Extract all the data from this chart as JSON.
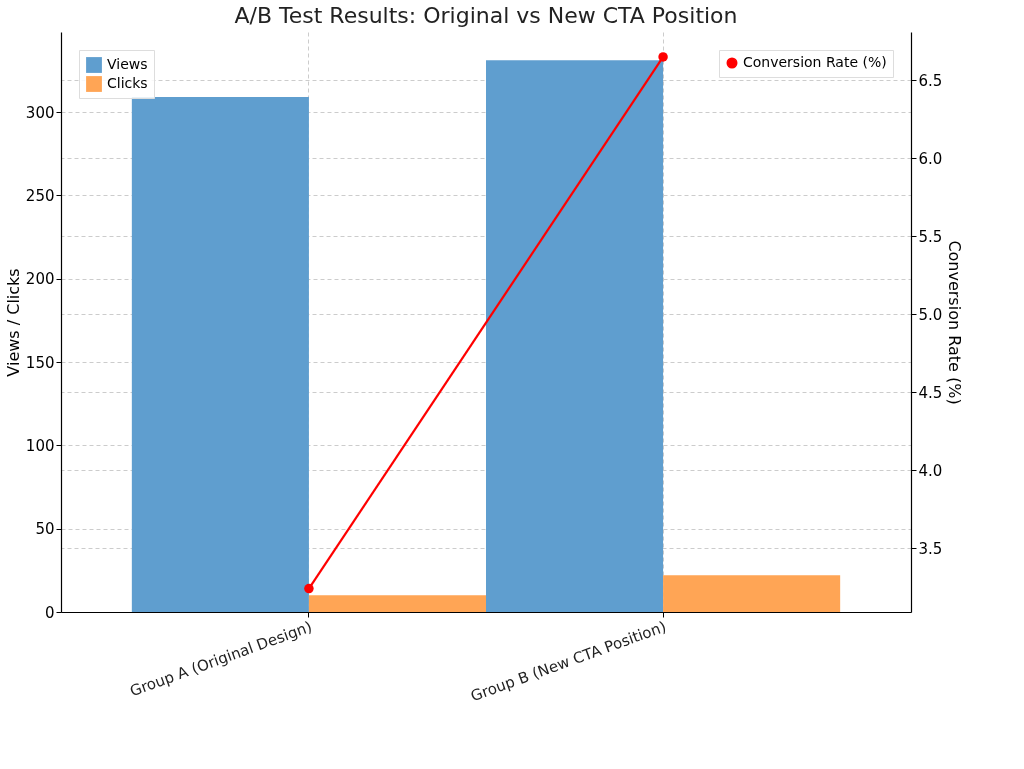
{
  "chart_data": {
    "type": "bar",
    "title": "A/B Test Results: Original vs New CTA Position",
    "ylabel": "Views / Clicks",
    "y2label": "Conversion Rate (%)",
    "categories": [
      "Group A (Original Design)",
      "Group B (New CTA Position)"
    ],
    "series": [
      {
        "name": "Views",
        "color": "#5f9ecf",
        "values": [
          309,
          331
        ]
      },
      {
        "name": "Clicks",
        "color": "#ffa555",
        "values": [
          10,
          22
        ]
      },
      {
        "name": "Conversion Rate (%)",
        "type": "line",
        "axis": "y2",
        "color": "#ff0000",
        "marker": "circle",
        "values": [
          3.24,
          6.65
        ]
      }
    ],
    "ylim": [
      0,
      348
    ],
    "yticks": [
      0,
      50,
      100,
      150,
      200,
      250,
      300
    ],
    "y2lim": [
      3.09,
      6.81
    ],
    "y2ticks": [
      3.5,
      {
        "value": 4,
        "label": "4.0"
      },
      4.5,
      {
        "value": 5,
        "label": "5.0"
      },
      5.5,
      {
        "value": 6,
        "label": "6.0"
      },
      6.5
    ],
    "grid": true,
    "legend": "top left"
  }
}
